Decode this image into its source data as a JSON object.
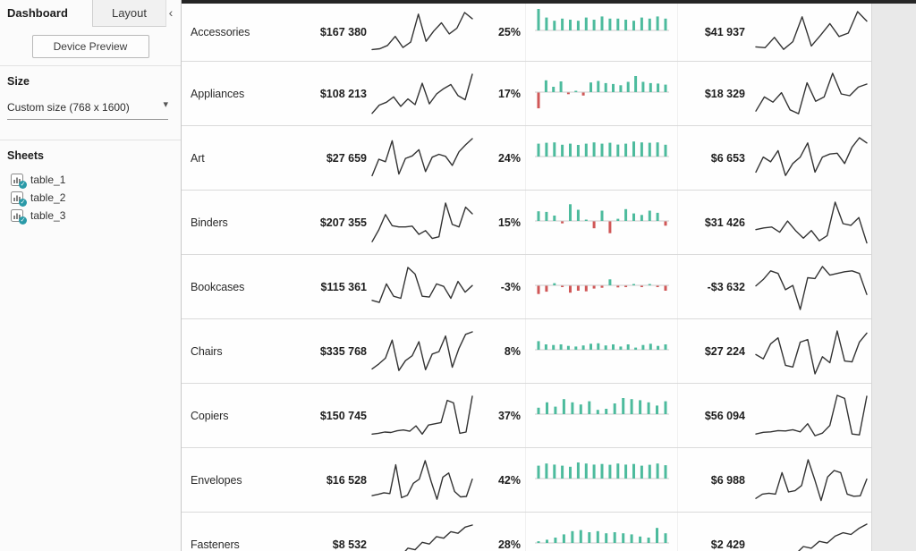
{
  "sidebar": {
    "tabs": {
      "dashboard": "Dashboard",
      "layout": "Layout",
      "collapse_icon": "‹"
    },
    "device_preview_label": "Device Preview",
    "size_section": {
      "title": "Size",
      "selected": "Custom size (768 x 1600)"
    },
    "sheets_section": {
      "title": "Sheets",
      "items": [
        {
          "label": "table_1"
        },
        {
          "label": "table_2"
        },
        {
          "label": "table_3"
        }
      ]
    }
  },
  "colors": {
    "positive": "#4dbb9d",
    "negative": "#d05757",
    "line": "#333333",
    "baseline": "#cccccc",
    "badge": "#2a9aa8"
  },
  "chart_data": {
    "type": "table",
    "rows": [
      {
        "category": "Accessories",
        "sales": "$167 380",
        "profit_ratio": "25%",
        "profit": "$41 937",
        "sales_spark": [
          10,
          12,
          20,
          42,
          15,
          28,
          96,
          30,
          55,
          75,
          48,
          62,
          100,
          85
        ],
        "profit_bars": [
          100,
          60,
          45,
          55,
          50,
          45,
          60,
          50,
          65,
          55,
          55,
          50,
          45,
          60,
          55,
          65,
          55
        ],
        "profit_spark": [
          18,
          16,
          40,
          12,
          30,
          88,
          20,
          45,
          72,
          42,
          50,
          100,
          78
        ]
      },
      {
        "category": "Appliances",
        "sales": "$108 213",
        "profit_ratio": "17%",
        "profit": "$18 329",
        "sales_spark": [
          5,
          25,
          32,
          45,
          22,
          40,
          26,
          78,
          28,
          52,
          65,
          75,
          48,
          38,
          100
        ],
        "profit_bars": [
          -80,
          55,
          25,
          50,
          -8,
          4,
          -15,
          45,
          52,
          42,
          38,
          32,
          48,
          75,
          48,
          42,
          40,
          35
        ],
        "profit_spark": [
          12,
          45,
          33,
          55,
          15,
          6,
          78,
          35,
          45,
          100,
          52,
          48,
          68,
          75
        ]
      },
      {
        "category": "Art",
        "sales": "$27 659",
        "profit_ratio": "24%",
        "profit": "$6 653",
        "sales_spark": [
          10,
          50,
          44,
          95,
          14,
          52,
          58,
          73,
          20,
          55,
          62,
          57,
          35,
          68,
          85,
          100
        ],
        "profit_bars": [
          60,
          64,
          66,
          55,
          60,
          54,
          60,
          66,
          60,
          64,
          56,
          60,
          70,
          66,
          64,
          66,
          55
        ],
        "profit_spark": [
          20,
          55,
          44,
          70,
          12,
          40,
          55,
          88,
          20,
          55,
          62,
          64,
          40,
          78,
          100,
          88
        ]
      },
      {
        "category": "Binders",
        "sales": "$207 355",
        "profit_ratio": "15%",
        "profit": "$31 426",
        "sales_spark": [
          6,
          35,
          72,
          45,
          42,
          42,
          44,
          24,
          33,
          14,
          18,
          100,
          48,
          42,
          90,
          74
        ],
        "profit_bars": [
          45,
          42,
          25,
          -10,
          78,
          52,
          5,
          -35,
          48,
          -60,
          10,
          55,
          35,
          28,
          48,
          38,
          -22
        ],
        "profit_spark": [
          36,
          40,
          42,
          30,
          56,
          34,
          16,
          34,
          10,
          22,
          100,
          50,
          46,
          64,
          5
        ]
      },
      {
        "category": "Bookcases",
        "sales": "$115 361",
        "profit_ratio": "-3%",
        "profit": "-$3 632",
        "sales_spark": [
          20,
          15,
          60,
          30,
          25,
          100,
          84,
          30,
          28,
          60,
          54,
          25,
          66,
          40,
          56
        ],
        "profit_bars": [
          -42,
          -30,
          10,
          -6,
          -35,
          -25,
          -28,
          -14,
          -10,
          28,
          -8,
          -4,
          6,
          -4,
          4,
          -6,
          -25
        ],
        "profit_spark": [
          55,
          70,
          90,
          84,
          46,
          56,
          0,
          74,
          72,
          100,
          80,
          84,
          88,
          90,
          84,
          35
        ]
      },
      {
        "category": "Chairs",
        "sales": "$335 768",
        "profit_ratio": "8%",
        "profit": "$27 224",
        "sales_spark": [
          10,
          22,
          36,
          80,
          6,
          30,
          42,
          76,
          8,
          46,
          52,
          90,
          14,
          60,
          94,
          100
        ],
        "profit_bars": [
          40,
          25,
          22,
          25,
          18,
          15,
          20,
          28,
          30,
          20,
          25,
          15,
          25,
          10,
          22,
          28,
          18,
          25
        ],
        "profit_spark": [
          45,
          35,
          70,
          84,
          20,
          16,
          74,
          80,
          0,
          40,
          26,
          100,
          30,
          28,
          74,
          95
        ]
      },
      {
        "category": "Copiers",
        "sales": "$150 745",
        "profit_ratio": "37%",
        "profit": "$56 094",
        "sales_spark": [
          8,
          10,
          13,
          12,
          16,
          18,
          15,
          28,
          8,
          30,
          33,
          36,
          90,
          84,
          10,
          13,
          100
        ],
        "profit_bars": [
          30,
          55,
          35,
          70,
          55,
          45,
          60,
          20,
          25,
          50,
          75,
          70,
          65,
          55,
          40,
          60
        ],
        "profit_spark": [
          10,
          14,
          15,
          18,
          17,
          20,
          15,
          34,
          6,
          12,
          30,
          100,
          93,
          10,
          8,
          98
        ]
      },
      {
        "category": "Envelopes",
        "sales": "$16 528",
        "profit_ratio": "42%",
        "profit": "$6 988",
        "sales_spark": [
          15,
          18,
          22,
          20,
          90,
          10,
          16,
          45,
          55,
          100,
          50,
          6,
          60,
          70,
          25,
          12,
          13,
          55
        ],
        "profit_bars": [
          60,
          70,
          65,
          60,
          55,
          75,
          70,
          65,
          68,
          64,
          70,
          65,
          68,
          60,
          64,
          70,
          62
        ],
        "profit_spark": [
          10,
          20,
          22,
          20,
          70,
          25,
          28,
          40,
          100,
          55,
          5,
          60,
          75,
          70,
          20,
          15,
          16,
          55
        ]
      },
      {
        "category": "Fasteners",
        "sales": "$8 532",
        "profit_ratio": "28%",
        "profit": "$2 429",
        "sales_spark": [
          10,
          18,
          14,
          28,
          24,
          44,
          40,
          58,
          54,
          72,
          68,
          84,
          80,
          95,
          100
        ],
        "profit_bars": [
          8,
          15,
          25,
          40,
          55,
          60,
          50,
          55,
          45,
          50,
          45,
          40,
          30,
          25,
          70,
          45
        ],
        "profit_spark": [
          12,
          10,
          24,
          20,
          34,
          30,
          48,
          44,
          60,
          56,
          72,
          80,
          76,
          90,
          100
        ]
      }
    ]
  }
}
